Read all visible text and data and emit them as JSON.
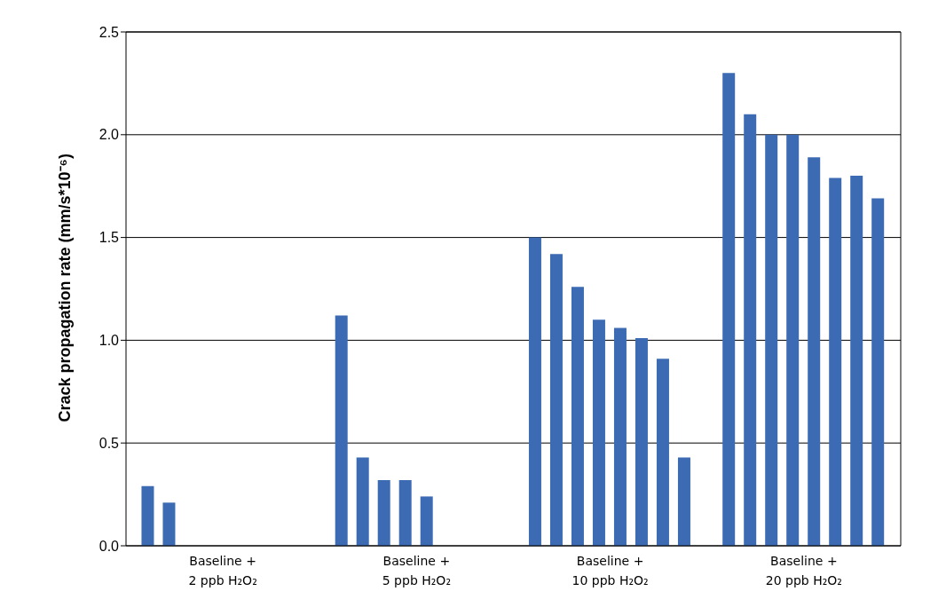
{
  "chart_data": {
    "type": "bar",
    "ylabel": "Crack propagation rate  (mm/s*10⁻⁶)",
    "categories": [
      "Baseline +\n2 ppb H₂O₂",
      "Baseline +\n5 ppb H₂O₂",
      "Baseline +\n10 ppb H₂O₂",
      "Baseline +\n20 ppb H₂O₂"
    ],
    "series": [
      {
        "color": "#3c6bb4",
        "values": [
          0.29,
          1.12,
          1.5,
          2.3
        ]
      },
      {
        "color": "#3c6bb4",
        "values": [
          0.21,
          0.43,
          1.42,
          2.1
        ]
      },
      {
        "color": "#3c6bb4",
        "values": [
          0,
          0.32,
          1.26,
          2.0
        ]
      },
      {
        "color": "#3c6bb4",
        "values": [
          0,
          0.32,
          1.1,
          2.0
        ]
      },
      {
        "color": "#3c6bb4",
        "values": [
          0,
          0.24,
          1.06,
          1.89
        ]
      },
      {
        "color": "#3c6bb4",
        "values": [
          0,
          0,
          1.01,
          1.79
        ]
      },
      {
        "color": "#3c6bb4",
        "values": [
          0,
          0,
          0.91,
          1.8
        ]
      },
      {
        "color": "#3c6bb4",
        "values": [
          0,
          0,
          0.43,
          1.69
        ]
      }
    ],
    "ylim": [
      0,
      2.5
    ],
    "yticks": [
      {
        "value": 0,
        "label": "0.0"
      },
      {
        "value": 0.5,
        "label": "0.5"
      },
      {
        "value": 1,
        "label": "1.0"
      },
      {
        "value": 1.5,
        "label": "1.5"
      },
      {
        "value": 2,
        "label": "2.0"
      },
      {
        "value": 2.5,
        "label": "2.5"
      }
    ],
    "grid": "y",
    "legend": false
  }
}
